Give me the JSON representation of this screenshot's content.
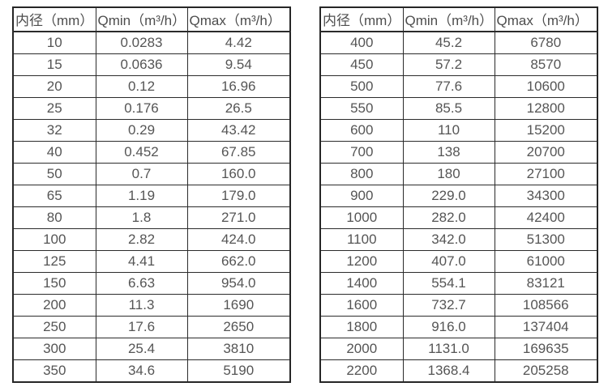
{
  "page": {
    "background_color": "#ffffff",
    "border_color": "#2b2b2b",
    "text_color": "#4d4d4d"
  },
  "tables": [
    {
      "name": "diameter-flow-table-small",
      "headers": [
        "内径（mm）",
        "Qmin（m³/h）",
        "Qmax（m³/h）"
      ],
      "rows": [
        [
          "10",
          "0.0283",
          "4.42"
        ],
        [
          "15",
          "0.0636",
          "9.54"
        ],
        [
          "20",
          "0.12",
          "16.96"
        ],
        [
          "25",
          "0.176",
          "26.5"
        ],
        [
          "32",
          "0.29",
          "43.42"
        ],
        [
          "40",
          "0.452",
          "67.85"
        ],
        [
          "50",
          "0.7",
          "160.0"
        ],
        [
          "65",
          "1.19",
          "179.0"
        ],
        [
          "80",
          "1.8",
          "271.0"
        ],
        [
          "100",
          "2.82",
          "424.0"
        ],
        [
          "125",
          "4.41",
          "662.0"
        ],
        [
          "150",
          "6.63",
          "954.0"
        ],
        [
          "200",
          "11.3",
          "1690"
        ],
        [
          "250",
          "17.6",
          "2650"
        ],
        [
          "300",
          "25.4",
          "3810"
        ],
        [
          "350",
          "34.6",
          "5190"
        ]
      ]
    },
    {
      "name": "diameter-flow-table-large",
      "headers": [
        "内径（mm）",
        "Qmin（m³/h）",
        "Qmax（m³/h）"
      ],
      "rows": [
        [
          "400",
          "45.2",
          "6780"
        ],
        [
          "450",
          "57.2",
          "8570"
        ],
        [
          "500",
          "77.6",
          "10600"
        ],
        [
          "550",
          "85.5",
          "12800"
        ],
        [
          "600",
          "110",
          "15200"
        ],
        [
          "700",
          "138",
          "20700"
        ],
        [
          "800",
          "180",
          "27100"
        ],
        [
          "900",
          "229.0",
          "34300"
        ],
        [
          "1000",
          "282.0",
          "42400"
        ],
        [
          "1100",
          "342.0",
          "51300"
        ],
        [
          "1200",
          "407.0",
          "61000"
        ],
        [
          "1400",
          "554.1",
          "83121"
        ],
        [
          "1600",
          "732.7",
          "108566"
        ],
        [
          "1800",
          "916.0",
          "137404"
        ],
        [
          "2000",
          "1131.0",
          "169635"
        ],
        [
          "2200",
          "1368.4",
          "205258"
        ]
      ]
    }
  ]
}
